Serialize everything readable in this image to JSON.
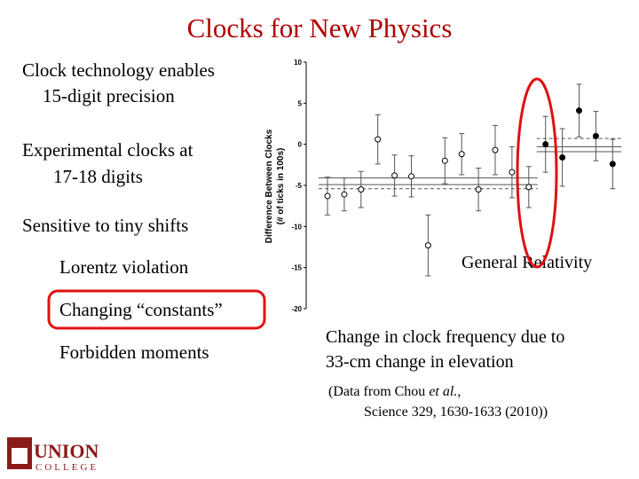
{
  "title": "Clocks for New Physics",
  "bullets": [
    {
      "lines": [
        "Clock technology enables",
        "15-digit precision"
      ]
    },
    {
      "lines": [
        "Experimental clocks at",
        "17-18 digits"
      ]
    },
    {
      "lines": [
        "Sensitive to tiny shifts"
      ]
    },
    {
      "lines": [
        "Lorentz violation"
      ]
    },
    {
      "lines": [
        "Changing “constants”"
      ]
    },
    {
      "lines": [
        "Forbidden moments"
      ]
    }
  ],
  "caption": [
    "Change in clock frequency due to",
    "33-cm change in elevation"
  ],
  "reference": {
    "line1": [
      "(Data from Chou ",
      "et al.",
      ","
    ],
    "line2": "Science 329, 1630-1633 (2010))"
  },
  "logo": [
    "UNION",
    "COLLEGE"
  ],
  "chart_data": {
    "type": "scatter",
    "y_label": [
      "Difference Between Clocks",
      "(# of ticks in 100s)"
    ],
    "annotation": "General Relativity",
    "categories": [
      null,
      null,
      null,
      null,
      null,
      null,
      null,
      null,
      null,
      null,
      null,
      null,
      null,
      null,
      null,
      null,
      null,
      null
    ],
    "ylim": [
      -20,
      10
    ],
    "yticks": [
      10,
      5,
      0,
      -5,
      -10,
      -15,
      -20
    ],
    "series": [
      {
        "marker": "open",
        "color": "#000000",
        "values": [
          -6.3,
          -6.1,
          -5.5,
          0.6,
          -3.8,
          -3.9,
          -12.3,
          -2.0,
          -1.2,
          -5.5,
          -0.7,
          -3.4,
          -5.2,
          null,
          null,
          null,
          null,
          null
        ],
        "errors": [
          2.3,
          2.0,
          2.2,
          3.0,
          2.5,
          2.5,
          3.7,
          2.8,
          2.5,
          2.6,
          3.0,
          3.1,
          2.5,
          null,
          null,
          null,
          null,
          null
        ],
        "lines": [
          -4.1,
          -4.9,
          -5.4
        ],
        "line_styles": [
          "solid",
          "solid",
          "dashed"
        ]
      },
      {
        "marker": "filled",
        "color": "#000000",
        "values": [
          null,
          null,
          null,
          null,
          null,
          null,
          null,
          null,
          null,
          null,
          null,
          null,
          null,
          0.0,
          -1.6,
          4.1,
          1.0,
          -2.4
        ],
        "errors": [
          null,
          null,
          null,
          null,
          null,
          null,
          null,
          null,
          null,
          null,
          null,
          null,
          null,
          3.4,
          3.5,
          3.2,
          3.0,
          3.0
        ],
        "lines": [
          0.7,
          -0.3,
          -0.9
        ],
        "line_styles": [
          "dashed",
          "solid",
          "solid"
        ]
      }
    ]
  }
}
